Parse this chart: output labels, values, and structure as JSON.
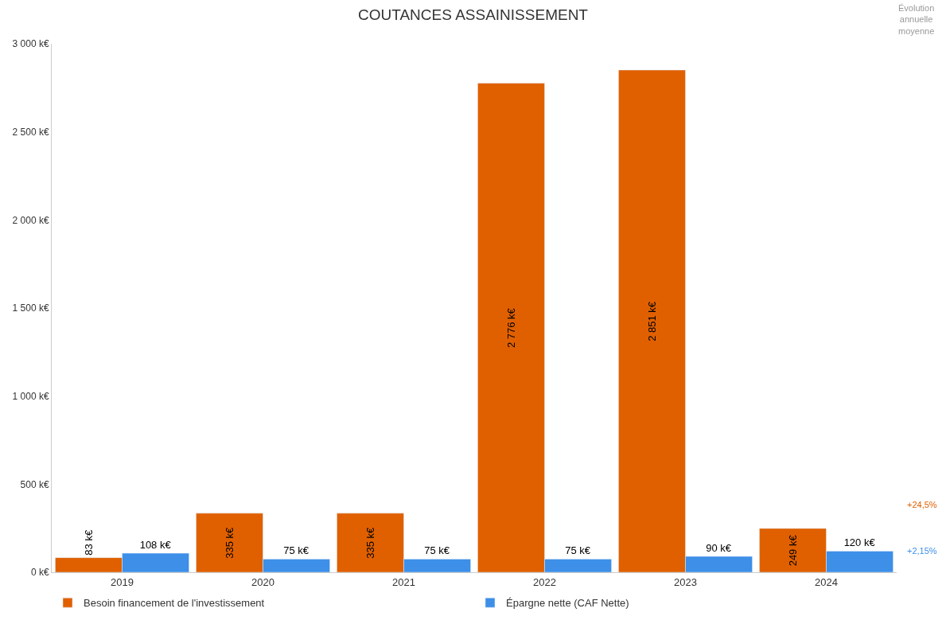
{
  "chart_data": {
    "type": "bar",
    "title": "COUTANCES ASSAINISSEMENT",
    "categories": [
      "2019",
      "2020",
      "2021",
      "2022",
      "2023",
      "2024"
    ],
    "series": [
      {
        "name": "Besoin financement de l'investissement",
        "color": "#e06000",
        "values": [
          83,
          335,
          335,
          2776,
          2851,
          249
        ],
        "value_labels": [
          "83 k€",
          "335 k€",
          "335 k€",
          "2 776 k€",
          "2 851 k€",
          "249 k€"
        ]
      },
      {
        "name": "Épargne nette (CAF Nette)",
        "color": "#3d8fe8",
        "values": [
          108,
          75,
          75,
          75,
          90,
          120
        ],
        "value_labels": [
          "108 k€",
          "75 k€",
          "75 k€",
          "75 k€",
          "90 k€",
          "120 k€"
        ]
      }
    ],
    "ylim": [
      0,
      3000
    ],
    "yticks": [
      {
        "value": 0,
        "label": "0 k€"
      },
      {
        "value": 500,
        "label": "500 k€"
      },
      {
        "value": 1000,
        "label": "1 000 k€"
      },
      {
        "value": 1500,
        "label": "1 500 k€"
      },
      {
        "value": 2000,
        "label": "2 000 k€"
      },
      {
        "value": 2500,
        "label": "2 500 k€"
      },
      {
        "value": 3000,
        "label": "3 000 k€"
      }
    ],
    "annotations": [
      "Évolution\nannuelle\nmoyenne",
      "+24,5%",
      "+2,15%"
    ],
    "legend": "bottom"
  }
}
